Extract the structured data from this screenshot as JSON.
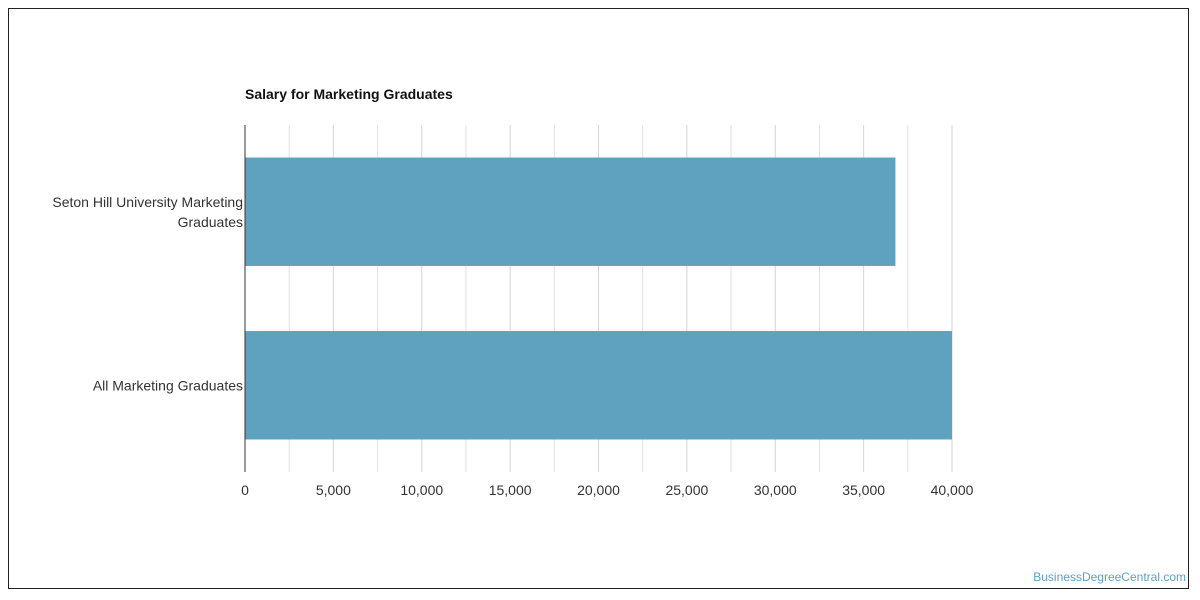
{
  "chart_data": {
    "type": "bar",
    "orientation": "horizontal",
    "title": "Salary for Marketing Graduates",
    "categories": [
      [
        "Seton Hill University Marketing",
        "Graduates"
      ],
      [
        "All Marketing Graduates"
      ]
    ],
    "values": [
      36800,
      40000
    ],
    "xlim": [
      0,
      40000
    ],
    "xticks": [
      "0",
      "5,000",
      "10,000",
      "15,000",
      "20,000",
      "25,000",
      "30,000",
      "35,000",
      "40,000"
    ],
    "xtick_values": [
      0,
      5000,
      10000,
      15000,
      20000,
      25000,
      30000,
      35000,
      40000
    ],
    "grid": true,
    "bar_color": "#5ea2c0",
    "grid_color": "#e0e0e0"
  },
  "watermark": "BusinessDegreeCentral.com"
}
